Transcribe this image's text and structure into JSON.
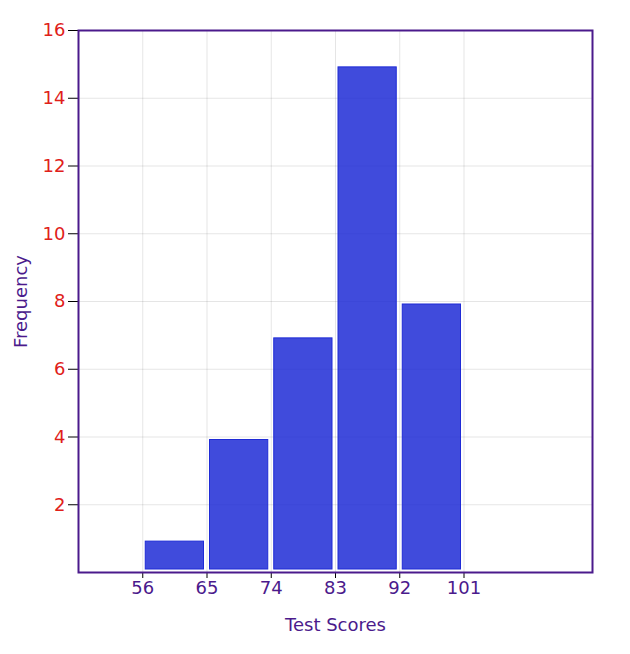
{
  "chart_data": {
    "type": "histogram",
    "bins": [
      56,
      65,
      74,
      83,
      92,
      101
    ],
    "values": [
      1,
      4,
      7,
      15,
      8
    ],
    "color": "#1f2bd6",
    "x_label": "Test Scores",
    "y_label": "Frequency",
    "xlim": [
      47,
      119
    ],
    "xticks": [
      56,
      65,
      74,
      83,
      92,
      101
    ],
    "ylim": [
      0,
      16
    ],
    "yticks": [
      2,
      4,
      6,
      8,
      10,
      12,
      14,
      16
    ],
    "grid": true
  }
}
